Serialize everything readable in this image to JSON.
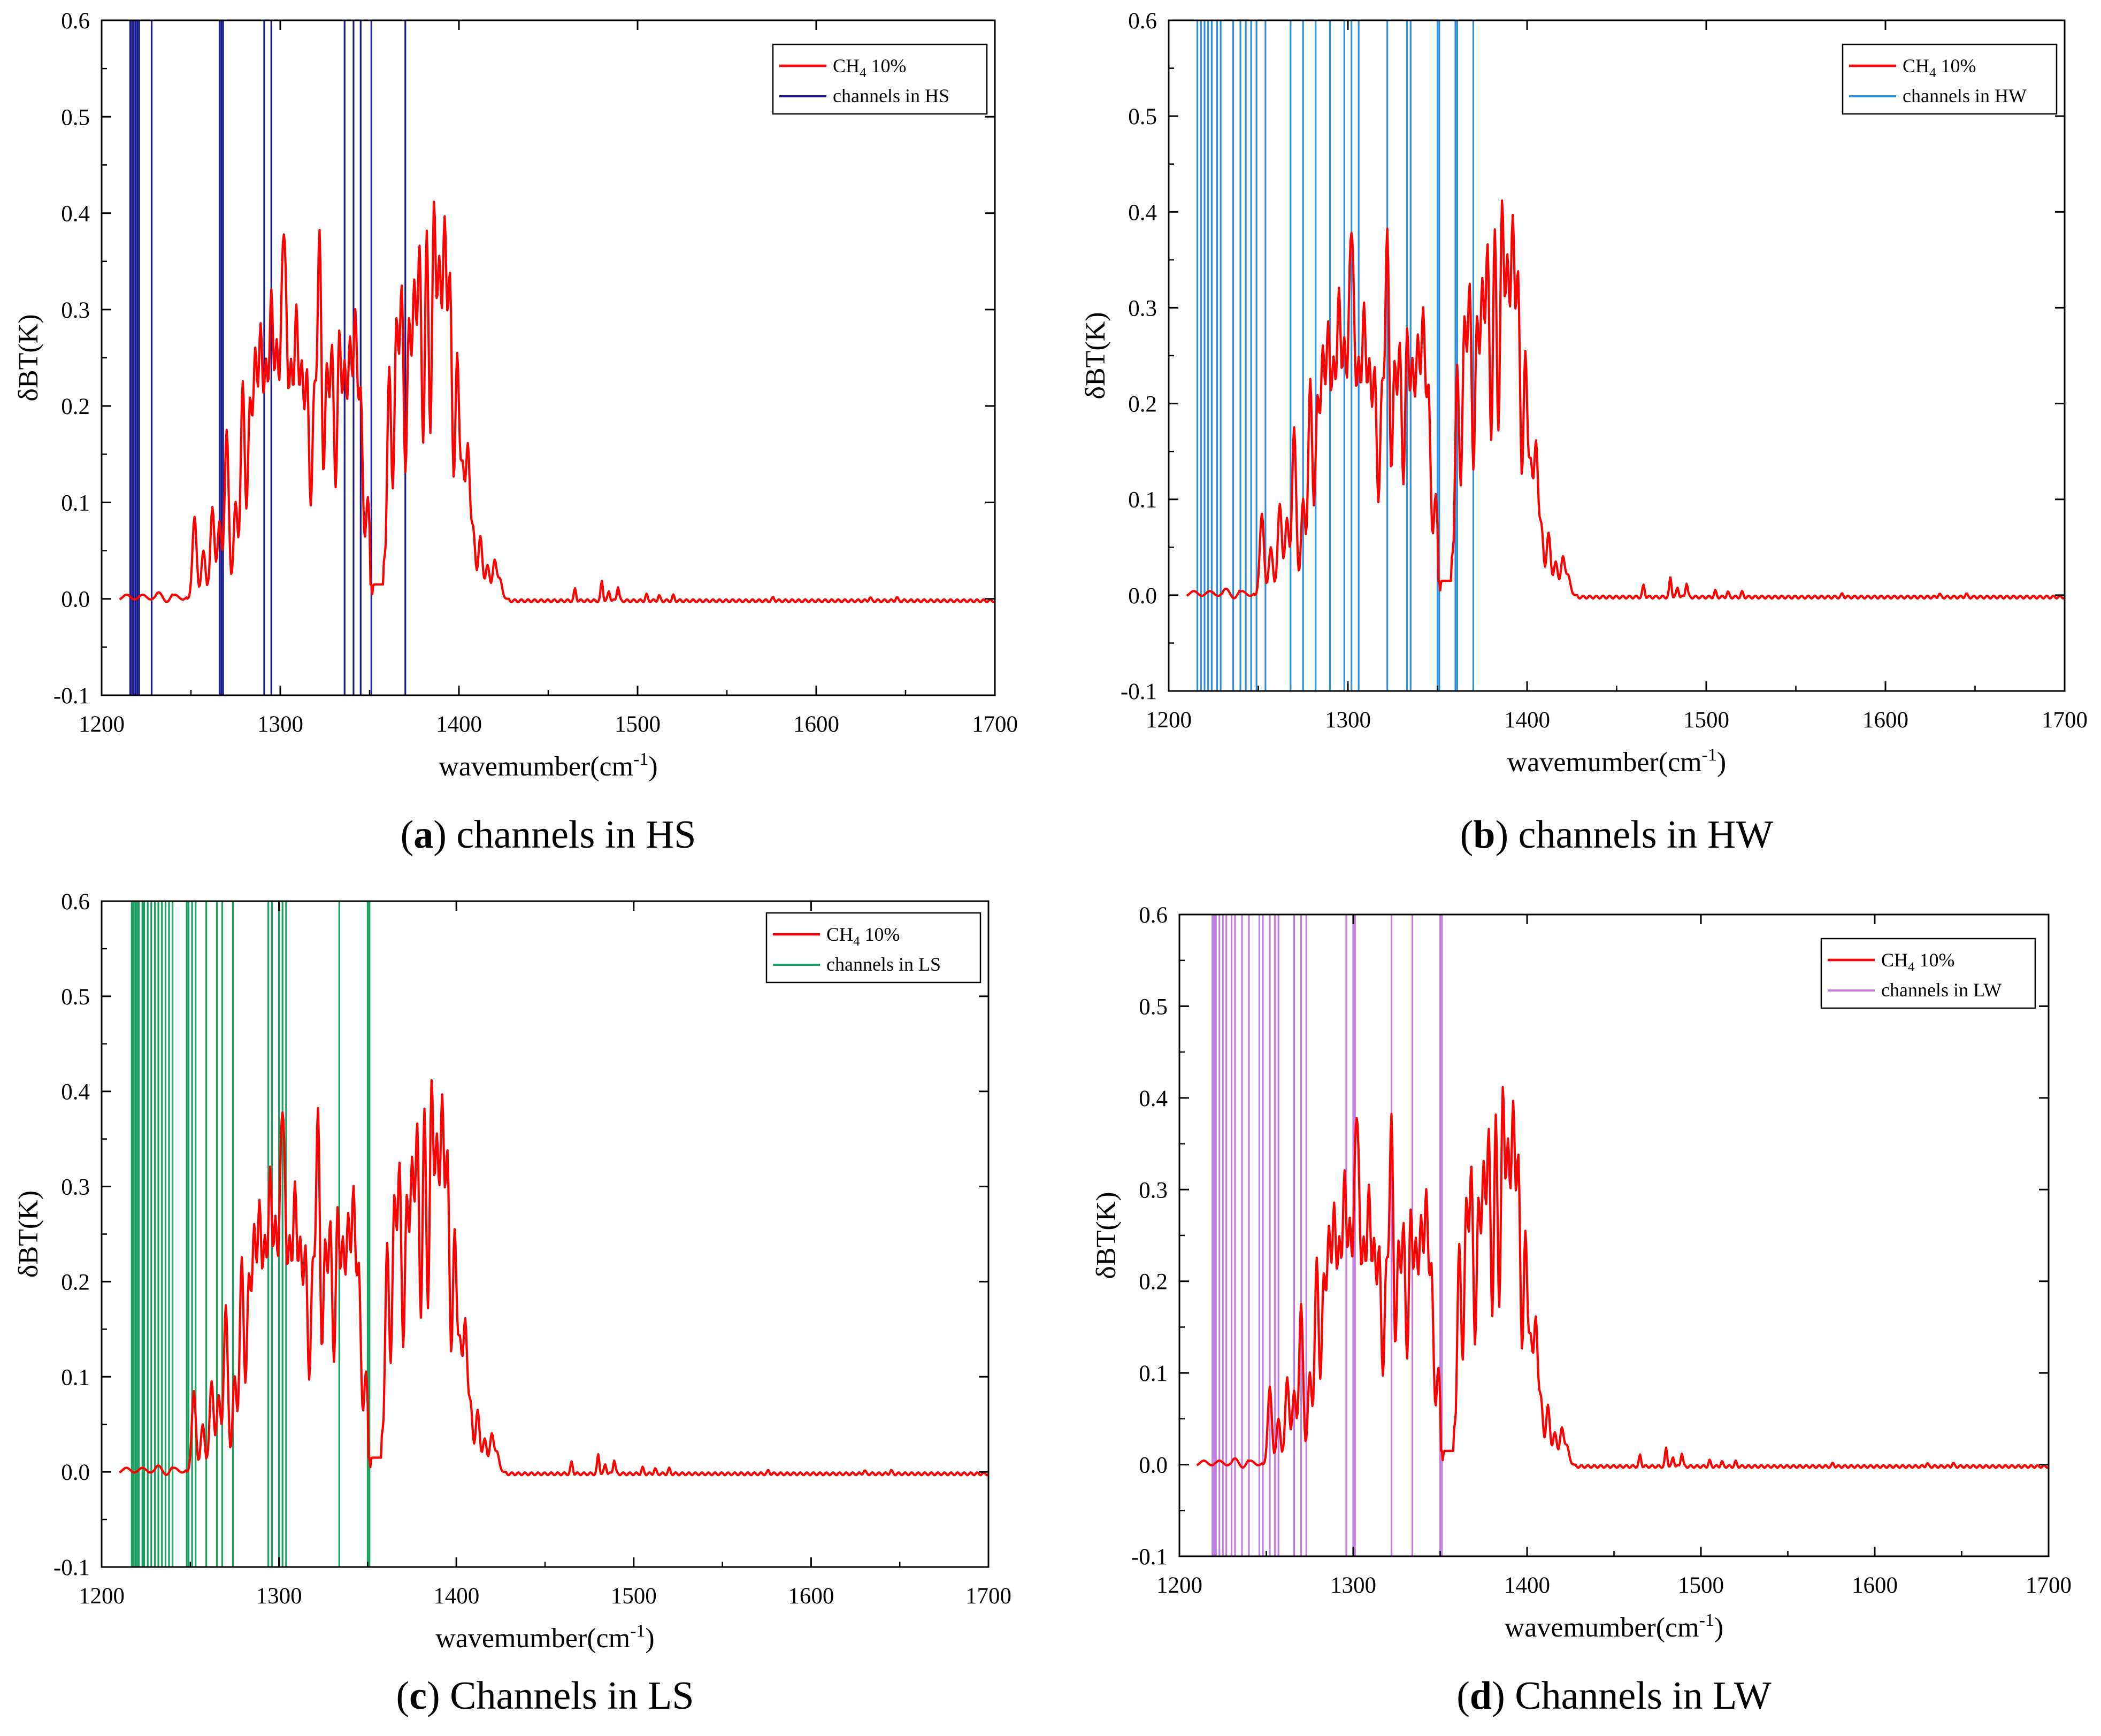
{
  "figure": {
    "shared_series": {
      "name": "CH4 10%",
      "legend_main": "CH",
      "legend_sub": "4",
      "legend_rest": " 10%",
      "color": "#ff0000"
    },
    "panels": [
      {
        "id": "a",
        "caption_letter": "a",
        "caption_text": " channels in HS",
        "chart_data": {
          "type": "line",
          "title": "",
          "xlabel": "wavemumber(cm-1)",
          "xlabel_main": "wavemumber(cm",
          "xlabel_sup": "-1",
          "xlabel_close": ")",
          "ylabel": "δBT(K)",
          "xlim": [
            1200,
            1700
          ],
          "ylim": [
            -0.1,
            0.6
          ],
          "xticks": [
            "1200",
            "1300",
            "1400",
            "1500",
            "1600",
            "1700"
          ],
          "yticks": [
            "0.6",
            "0.5",
            "0.4",
            "0.3",
            "0.2",
            "0.1",
            "0.0",
            "-0.1"
          ],
          "legend_position": "top-right",
          "series": [
            {
              "name": "CH4 10%",
              "color": "#ff0000",
              "kind": "line"
            },
            {
              "name": "channels in HS",
              "color": "#1a1a8c",
              "kind": "vlines",
              "x": [
                1216,
                1217,
                1218,
                1219,
                1220,
                1221,
                1228,
                1266,
                1267,
                1268,
                1291,
                1295,
                1336,
                1341,
                1345,
                1351,
                1370
              ]
            }
          ]
        }
      },
      {
        "id": "b",
        "caption_letter": "b",
        "caption_text": " channels in HW",
        "chart_data": {
          "type": "line",
          "title": "",
          "xlabel": "wavemumber(cm-1)",
          "xlabel_main": "wavemumber(cm",
          "xlabel_sup": "-1",
          "xlabel_close": ")",
          "ylabel": "δBT(K)",
          "xlim": [
            1200,
            1700
          ],
          "ylim": [
            -0.1,
            0.6
          ],
          "xticks": [
            "1200",
            "1300",
            "1400",
            "1500",
            "1600",
            "1700"
          ],
          "yticks": [
            "0.6",
            "0.5",
            "0.4",
            "0.3",
            "0.2",
            "0.1",
            "0.0",
            "-0.1"
          ],
          "legend_position": "top-right",
          "series": [
            {
              "name": "CH4 10%",
              "color": "#ff0000",
              "kind": "line"
            },
            {
              "name": "channels in HW",
              "color": "#2f8fd8",
              "kind": "vlines",
              "x": [
                1216,
                1218,
                1220,
                1222,
                1224,
                1227,
                1229,
                1236,
                1240,
                1243,
                1246,
                1249,
                1254,
                1268,
                1275,
                1282,
                1290,
                1298,
                1302,
                1306,
                1322,
                1333,
                1335,
                1350,
                1351,
                1360,
                1361,
                1370
              ]
            }
          ]
        }
      },
      {
        "id": "c",
        "caption_letter": "c",
        "caption_text": " Channels in LS",
        "chart_data": {
          "type": "line",
          "title": "",
          "xlabel": "wavemumber(cm-1)",
          "xlabel_main": "wavemumber(cm",
          "xlabel_sup": "-1",
          "xlabel_close": ")",
          "ylabel": "δBT(K)",
          "xlim": [
            1200,
            1700
          ],
          "ylim": [
            -0.1,
            0.6
          ],
          "xticks": [
            "1200",
            "1300",
            "1400",
            "1500",
            "1600",
            "1700"
          ],
          "yticks": [
            "0.6",
            "0.5",
            "0.4",
            "0.3",
            "0.2",
            "0.1",
            "0.0",
            "-0.1"
          ],
          "legend_position": "top-right",
          "series": [
            {
              "name": "CH4 10%",
              "color": "#ff0000",
              "kind": "line"
            },
            {
              "name": "channels in LS",
              "color": "#1aa060",
              "kind": "vlines",
              "x": [
                1217,
                1218,
                1219,
                1220,
                1221,
                1223,
                1224,
                1226,
                1228,
                1230,
                1232,
                1234,
                1236,
                1238,
                1240,
                1248,
                1249,
                1251,
                1253,
                1259,
                1265,
                1268,
                1274,
                1294,
                1296,
                1300,
                1302,
                1304,
                1334,
                1350,
                1351
              ]
            }
          ]
        }
      },
      {
        "id": "d",
        "caption_letter": "d",
        "caption_text": " Channels in LW",
        "chart_data": {
          "type": "line",
          "title": "",
          "xlabel": "wavemumber(cm-1)",
          "xlabel_main": "wavemumber(cm",
          "xlabel_sup": "-1",
          "xlabel_close": ")",
          "ylabel": "δBT(K)",
          "xlim": [
            1200,
            1700
          ],
          "ylim": [
            -0.1,
            0.6
          ],
          "xticks": [
            "1200",
            "1300",
            "1400",
            "1500",
            "1600",
            "1700"
          ],
          "yticks": [
            "0.6",
            "0.5",
            "0.4",
            "0.3",
            "0.2",
            "0.1",
            "0.0",
            "-0.1"
          ],
          "legend_position": "top-right",
          "series": [
            {
              "name": "CH4 10%",
              "color": "#ff0000",
              "kind": "line"
            },
            {
              "name": "channels in LW",
              "color": "#c07ee0",
              "kind": "vlines",
              "x": [
                1219,
                1220,
                1221,
                1223,
                1225,
                1227,
                1230,
                1232,
                1236,
                1240,
                1246,
                1248,
                1252,
                1255,
                1257,
                1266,
                1270,
                1273,
                1296,
                1300,
                1301,
                1322,
                1334,
                1350,
                1351
              ]
            }
          ]
        }
      }
    ]
  }
}
